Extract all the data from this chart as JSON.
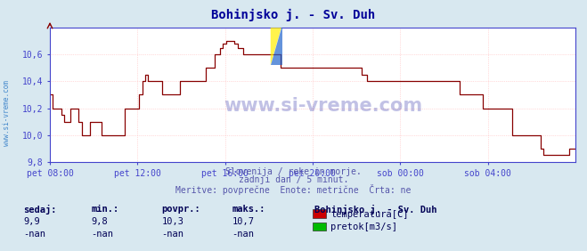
{
  "title": "Bohinjsko j. - Sv. Duh",
  "title_color": "#000099",
  "bg_color": "#d8e8f0",
  "plot_bg_color": "#ffffff",
  "grid_color": "#ffbbbb",
  "axis_color": "#4444cc",
  "tick_color": "#4444cc",
  "line_color": "#880000",
  "sidebar_text_color": "#4488cc",
  "ylim_min": 9.8,
  "ylim_max": 10.8,
  "yticks": [
    9.8,
    10.0,
    10.2,
    10.4,
    10.6
  ],
  "xtick_labels": [
    "pet 08:00",
    "pet 12:00",
    "pet 16:00",
    "pet 20:00",
    "sob 00:00",
    "sob 04:00"
  ],
  "info_line1": "Slovenija / reke in morje.",
  "info_line2": "zadnji dan / 5 minut.",
  "info_line3": "Meritve: povprečne  Enote: metrične  Črta: ne",
  "info_color": "#5555aa",
  "legend_title": "Bohinjsko j. - Sv. Duh",
  "legend_color": "#000055",
  "legend_entries": [
    {
      "label": "temperatura[C]",
      "color": "#cc0000"
    },
    {
      "label": "pretok[m3/s]",
      "color": "#00bb00"
    }
  ],
  "stats_headers": [
    "sedaj:",
    "min.:",
    "povpr.:",
    "maks.:"
  ],
  "stats_values_temp": [
    "9,9",
    "9,8",
    "10,3",
    "10,7"
  ],
  "stats_values_flow": [
    "-nan",
    "-nan",
    "-nan",
    "-nan"
  ],
  "stats_color": "#000055",
  "watermark": "www.si-vreme.com",
  "watermark_color": "#3333aa",
  "sidebar_label": "www.si-vreme.com",
  "temperature_data": [
    10.3,
    10.2,
    10.2,
    10.2,
    10.15,
    10.1,
    10.1,
    10.2,
    10.2,
    10.2,
    10.1,
    10.0,
    10.0,
    10.0,
    10.1,
    10.1,
    10.1,
    10.1,
    10.0,
    10.0,
    10.0,
    10.0,
    10.0,
    10.0,
    10.0,
    10.0,
    10.2,
    10.2,
    10.2,
    10.2,
    10.2,
    10.3,
    10.4,
    10.45,
    10.4,
    10.4,
    10.4,
    10.4,
    10.4,
    10.3,
    10.3,
    10.3,
    10.3,
    10.3,
    10.3,
    10.4,
    10.4,
    10.4,
    10.4,
    10.4,
    10.4,
    10.4,
    10.4,
    10.4,
    10.5,
    10.5,
    10.5,
    10.6,
    10.6,
    10.65,
    10.68,
    10.7,
    10.7,
    10.7,
    10.68,
    10.65,
    10.65,
    10.6,
    10.6,
    10.6,
    10.6,
    10.6,
    10.6,
    10.6,
    10.6,
    10.6,
    10.6,
    10.6,
    10.6,
    10.6,
    10.5,
    10.5,
    10.5,
    10.5,
    10.5,
    10.5,
    10.5,
    10.5,
    10.5,
    10.5,
    10.5,
    10.5,
    10.5,
    10.5,
    10.5,
    10.5,
    10.5,
    10.5,
    10.5,
    10.5,
    10.5,
    10.5,
    10.5,
    10.5,
    10.5,
    10.5,
    10.5,
    10.5,
    10.45,
    10.45,
    10.4,
    10.4,
    10.4,
    10.4,
    10.4,
    10.4,
    10.4,
    10.4,
    10.4,
    10.4,
    10.4,
    10.4,
    10.4,
    10.4,
    10.4,
    10.4,
    10.4,
    10.4,
    10.4,
    10.4,
    10.4,
    10.4,
    10.4,
    10.4,
    10.4,
    10.4,
    10.4,
    10.4,
    10.4,
    10.4,
    10.4,
    10.4,
    10.3,
    10.3,
    10.3,
    10.3,
    10.3,
    10.3,
    10.3,
    10.3,
    10.2,
    10.2,
    10.2,
    10.2,
    10.2,
    10.2,
    10.2,
    10.2,
    10.2,
    10.2,
    10.0,
    10.0,
    10.0,
    10.0,
    10.0,
    10.0,
    10.0,
    10.0,
    10.0,
    10.0,
    9.9,
    9.85,
    9.85,
    9.85,
    9.85,
    9.85,
    9.85,
    9.85,
    9.85,
    9.85,
    9.9,
    9.9,
    9.9
  ]
}
